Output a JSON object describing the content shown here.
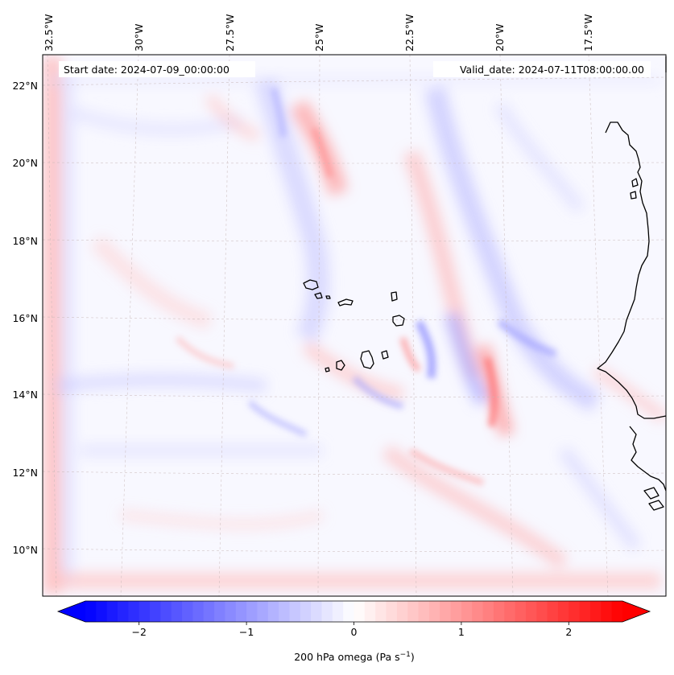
{
  "map": {
    "start_date_text": "Start date: 2024-07-09_00:00:00",
    "valid_date_text": "Valid_date: 2024-07-11T08:00:00.00",
    "lon_labels": [
      "32.5°W",
      "30°W",
      "27.5°W",
      "25°W",
      "22.5°W",
      "20°W",
      "17.5°W"
    ],
    "lat_labels": [
      "22°N",
      "20°N",
      "18°N",
      "16°N",
      "14°N",
      "12°N",
      "10°N"
    ],
    "field": "200 hPa omega",
    "colormap": "bwr",
    "background_color": "#f8f8ff",
    "coastline_color": "#000000",
    "gridline_style": "dashed"
  },
  "colorbar": {
    "label_main": "200 hPa omega (Pa s",
    "label_sup": "−1",
    "label_close": ")",
    "tick_labels": [
      "−2",
      "−1",
      "0",
      "1",
      "2"
    ],
    "ticks": [
      -2,
      -1,
      0,
      1,
      2
    ],
    "range": [
      -2.5,
      2.5
    ],
    "extend": "both",
    "min_color": "#0000ff",
    "mid_color": "#ffffff",
    "max_color": "#ff0000"
  }
}
